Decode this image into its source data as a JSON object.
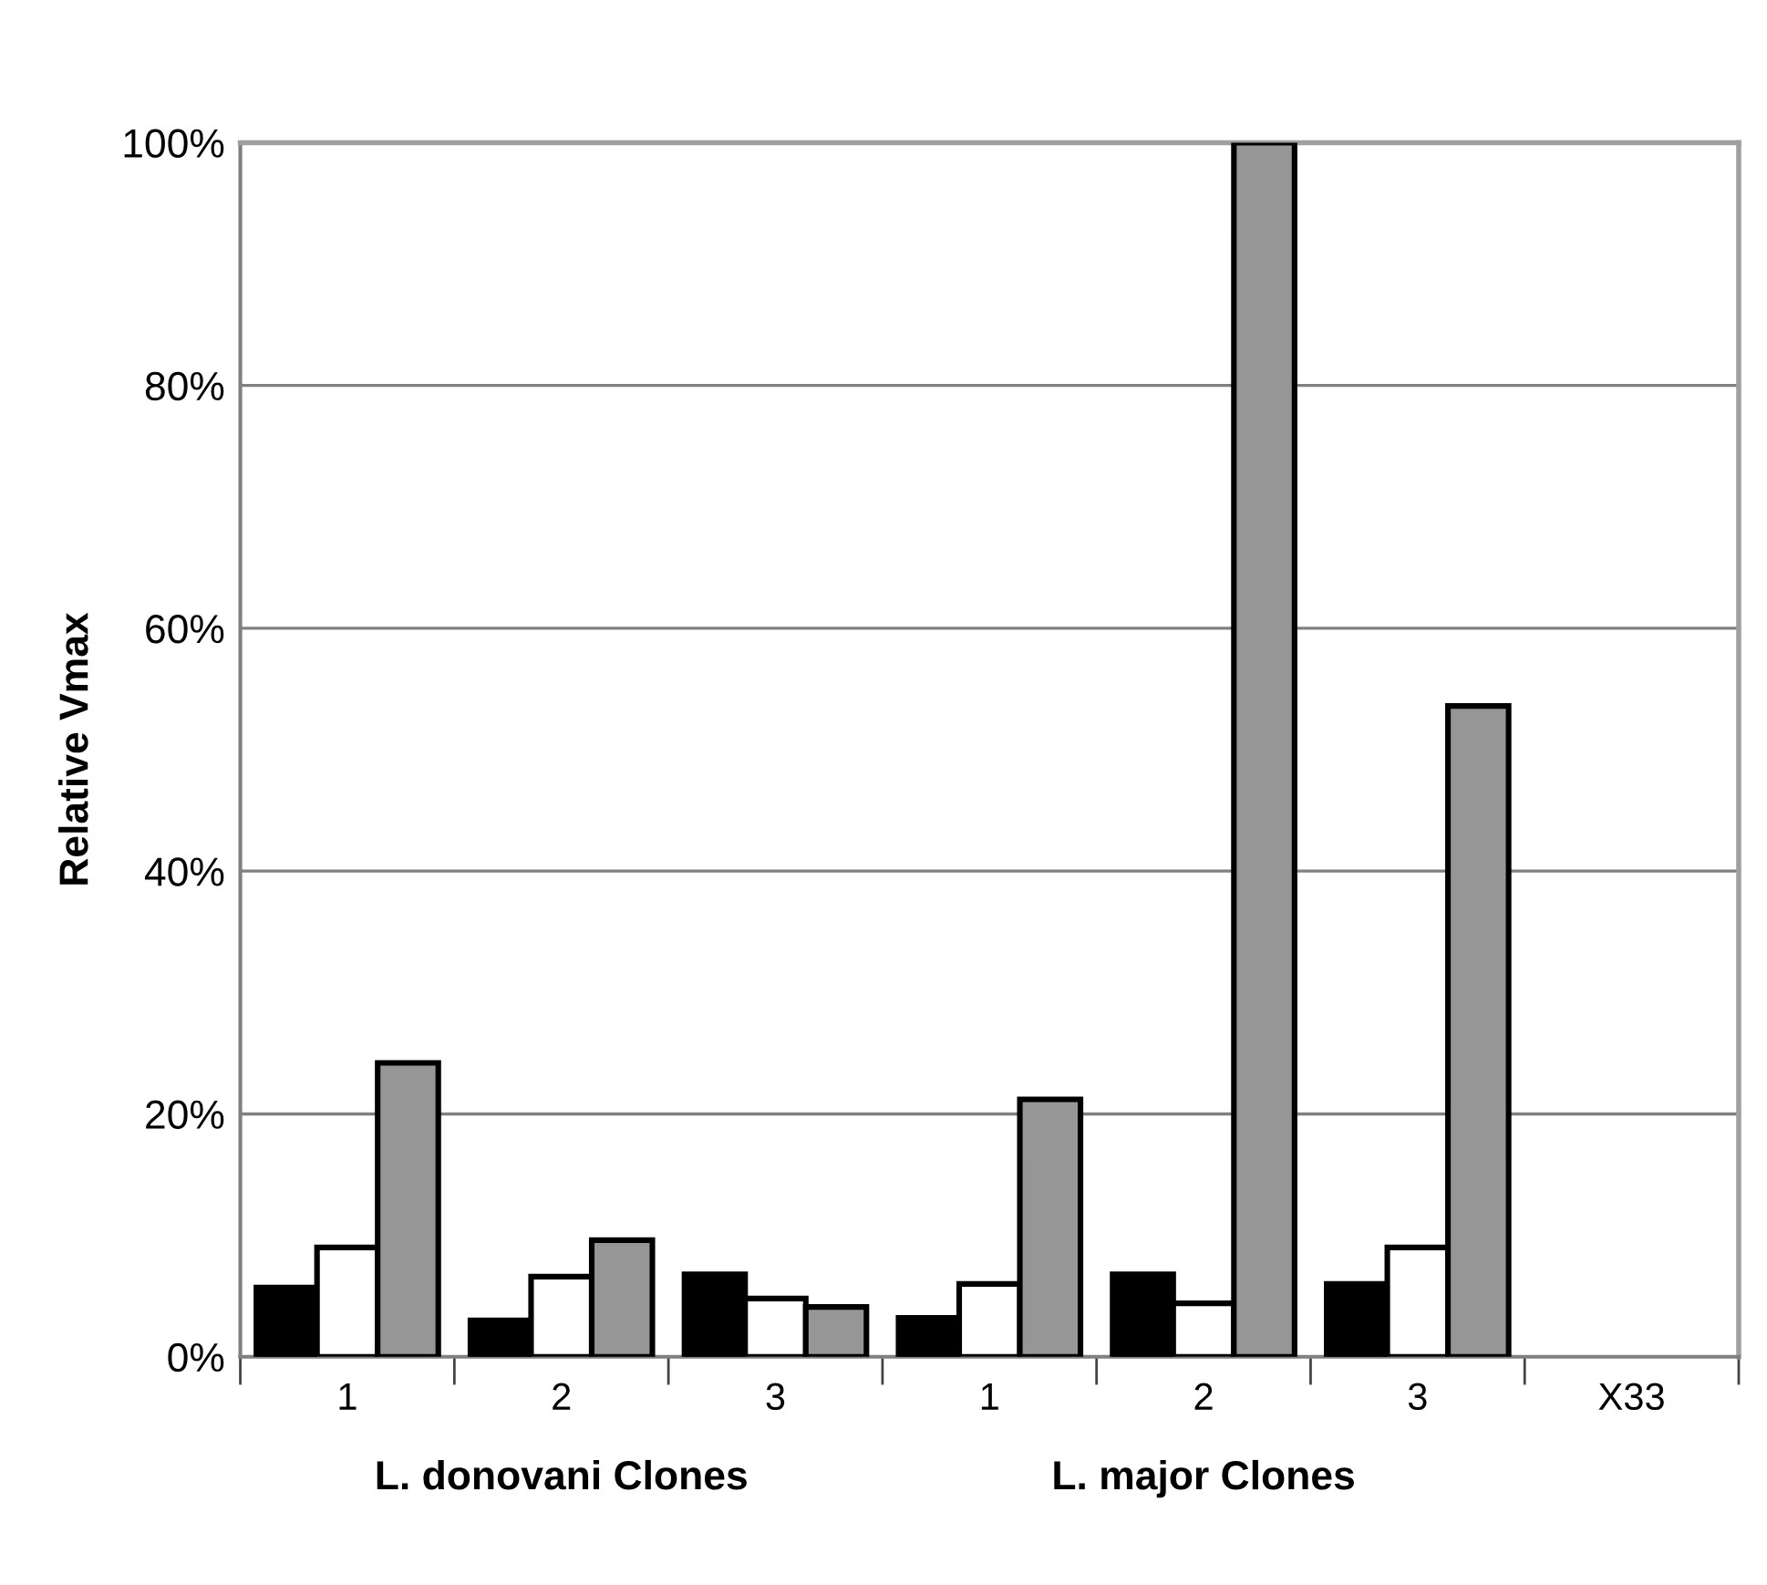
{
  "chart_data": {
    "type": "bar",
    "ylabel": "Relative Vmax",
    "categories": [
      "1",
      "2",
      "3",
      "1",
      "2",
      "3",
      "X33"
    ],
    "series": [
      {
        "color": "#000000",
        "values": [
          5.7,
          3.0,
          6.8,
          3.2,
          6.8,
          6.0,
          0
        ]
      },
      {
        "color": "#ffffff",
        "values": [
          9.0,
          6.6,
          4.8,
          6.0,
          4.4,
          9.0,
          0
        ]
      },
      {
        "color": "#969696",
        "values": [
          24.2,
          9.6,
          4.1,
          21.2,
          100,
          53.6,
          0
        ]
      }
    ],
    "ylim": [
      0,
      100
    ],
    "yticks": [
      {
        "value": 0,
        "label": "0%"
      },
      {
        "value": 20,
        "label": "20%"
      },
      {
        "value": 40,
        "label": "40%"
      },
      {
        "value": 60,
        "label": "60%"
      },
      {
        "value": 80,
        "label": "80%"
      },
      {
        "value": 100,
        "label": "100%"
      }
    ],
    "grid": "y",
    "annotations": [
      "L. donovani Clones",
      "L. major Clones"
    ]
  }
}
